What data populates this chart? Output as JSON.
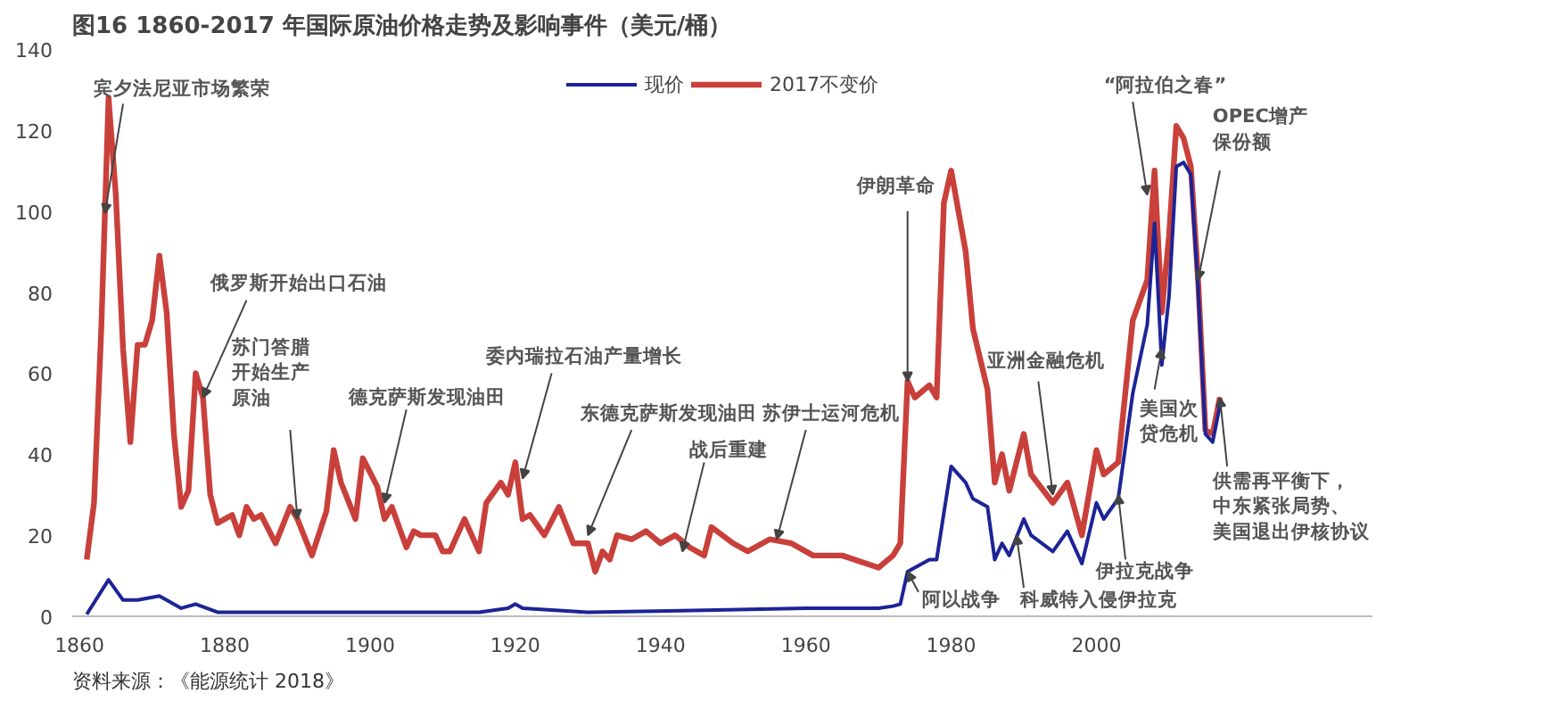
{
  "chart_data": {
    "type": "line",
    "title": "图16 1860-2017 年国际原油价格走势及影响事件（美元/桶）",
    "xlim": [
      1859,
      2038
    ],
    "xticks": [
      1860,
      1880,
      1900,
      1920,
      1940,
      1960,
      1980,
      2000
    ],
    "ylim": [
      0,
      140
    ],
    "yticks": [
      0,
      20,
      40,
      60,
      80,
      100,
      120,
      140
    ],
    "grid": false,
    "legend": "top",
    "line_style": "solid",
    "marker": "none",
    "series": [
      {
        "name": "现价",
        "color": "#1c2496",
        "x": [
          1861,
          1864,
          1866,
          1868,
          1871,
          1874,
          1876,
          1879,
          1900,
          1915,
          1919,
          1920,
          1921,
          1930,
          1946,
          1960,
          1970,
          1972,
          1973,
          1974,
          1977,
          1978,
          1980,
          1982,
          1983,
          1985,
          1986,
          1987,
          1988,
          1990,
          1991,
          1994,
          1996,
          1998,
          2000,
          2001,
          2003,
          2005,
          2007,
          2008,
          2009,
          2010,
          2011,
          2012,
          2013,
          2014,
          2015,
          2016,
          2017
        ],
        "values": [
          0.5,
          9,
          4,
          4,
          5,
          2,
          3,
          1,
          1,
          1,
          2,
          3,
          2,
          1,
          1.5,
          2,
          2,
          2.5,
          3,
          11,
          14,
          14,
          37,
          33,
          29,
          27,
          14,
          18,
          15,
          24,
          20,
          16,
          21,
          13,
          28,
          24,
          29,
          55,
          72,
          97,
          62,
          79,
          111,
          112,
          109,
          81,
          45,
          43,
          52
        ]
      },
      {
        "name": "2017不变价",
        "color": "#c9403b",
        "x": [
          1861,
          1862,
          1863,
          1864,
          1865,
          1866,
          1867,
          1868,
          1869,
          1870,
          1871,
          1872,
          1873,
          1874,
          1875,
          1876,
          1877,
          1878,
          1879,
          1881,
          1882,
          1883,
          1884,
          1885,
          1887,
          1889,
          1890,
          1892,
          1894,
          1895,
          1896,
          1898,
          1899,
          1901,
          1902,
          1903,
          1905,
          1906,
          1907,
          1909,
          1910,
          1911,
          1913,
          1915,
          1916,
          1918,
          1919,
          1920,
          1921,
          1922,
          1924,
          1926,
          1928,
          1930,
          1931,
          1932,
          1933,
          1934,
          1936,
          1938,
          1940,
          1942,
          1944,
          1946,
          1947,
          1950,
          1952,
          1955,
          1958,
          1961,
          1965,
          1970,
          1972,
          1973,
          1974,
          1975,
          1977,
          1978,
          1979,
          1980,
          1982,
          1983,
          1985,
          1986,
          1987,
          1988,
          1990,
          1991,
          1994,
          1996,
          1998,
          2000,
          2001,
          2003,
          2005,
          2007,
          2008,
          2009,
          2010,
          2011,
          2012,
          2013,
          2014,
          2015,
          2016,
          2017
        ],
        "values": [
          14,
          28,
          71,
          128,
          104,
          66,
          43,
          67,
          67,
          73,
          89,
          75,
          45,
          27,
          31,
          60,
          54,
          30,
          23,
          25,
          20,
          27,
          24,
          25,
          18,
          27,
          24,
          15,
          26,
          41,
          33,
          24,
          39,
          32,
          24,
          27,
          17,
          21,
          20,
          20,
          16,
          16,
          24,
          16,
          28,
          33,
          30,
          38,
          24,
          25,
          20,
          27,
          18,
          18,
          11,
          16,
          14,
          20,
          19,
          21,
          18,
          20,
          17,
          15,
          22,
          18,
          16,
          19,
          18,
          15,
          15,
          12,
          15,
          18,
          58,
          54,
          57,
          54,
          102,
          110,
          90,
          71,
          56,
          33,
          40,
          31,
          45,
          35,
          28,
          33,
          20,
          41,
          35,
          38,
          73,
          83,
          110,
          75,
          94,
          121,
          118,
          111,
          83,
          46,
          45,
          54
        ]
      }
    ],
    "annotations": [
      {
        "text": "宾夕法尼亚市场繁荣",
        "x": 1863.5,
        "y": 99.5
      },
      {
        "text": "俄罗斯开始出口石油",
        "x": 1877,
        "y": 54
      },
      {
        "text": "苏门答腊开始生产原油",
        "x": 1890,
        "y": 24
      },
      {
        "text": "德克萨斯发现油田",
        "x": 1902,
        "y": 28
      },
      {
        "text": "委内瑞拉石油产量增长",
        "x": 1921,
        "y": 34
      },
      {
        "text": "东德克萨斯发现油田",
        "x": 1930,
        "y": 20
      },
      {
        "text": "战后重建",
        "x": 1943,
        "y": 16
      },
      {
        "text": "苏伊士运河危机",
        "x": 1956,
        "y": 19
      },
      {
        "text": "伊朗革命",
        "x": 1974,
        "y": 58
      },
      {
        "text": "阿以战争",
        "x": 1974,
        "y": 11
      },
      {
        "text": "科威特入侵伊拉克",
        "x": 1989,
        "y": 20
      },
      {
        "text": "亚洲金融危机",
        "x": 1994,
        "y": 30
      },
      {
        "text": "伊拉克战争",
        "x": 2003,
        "y": 30
      },
      {
        "text": "“阿拉伯之春”",
        "x": 2007,
        "y": 104
      },
      {
        "text": "美国次贷危机",
        "x": 2009,
        "y": 66
      },
      {
        "text": "OPEC增产保份额",
        "x": 2014,
        "y": 83
      },
      {
        "text": "供需再平衡下，中东紧张局势、美国退出伊核协议",
        "x": 2017,
        "y": 54
      },
      "资料来源：《能源统计 2018》"
    ]
  }
}
